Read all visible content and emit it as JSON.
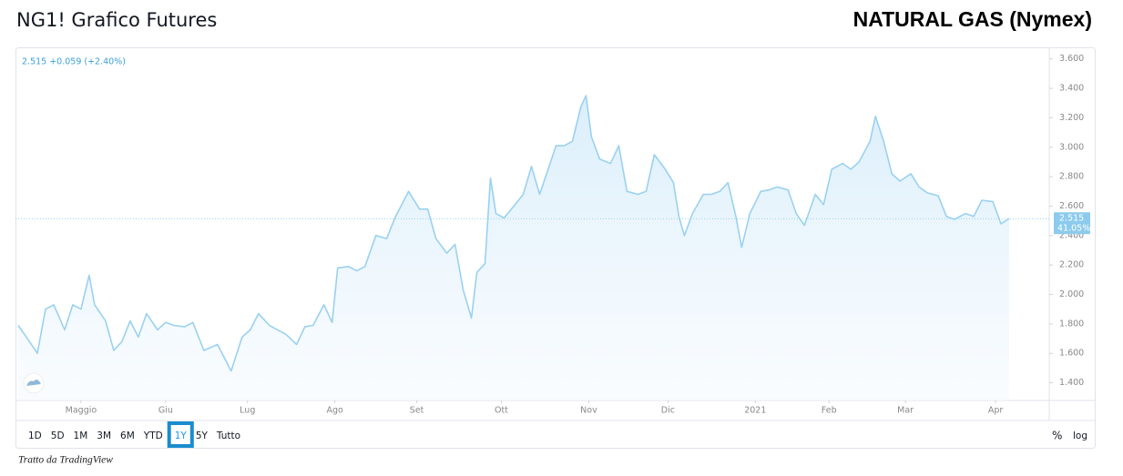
{
  "header": {
    "title": "NG1! Grafico Futures",
    "brand": "NATURAL GAS (Nymex)"
  },
  "chart_data": {
    "type": "area-line",
    "annotation": "2.515 +0.059 (+2.40%)",
    "last_value": 2.515,
    "last_change_label": "41.05%",
    "color": "#9ad1f1",
    "x": [
      1,
      4,
      8,
      11,
      14,
      18,
      21,
      24,
      27,
      29,
      33,
      36,
      39,
      42,
      45,
      48,
      52,
      55,
      58,
      62,
      65,
      69,
      74,
      79,
      83,
      86,
      89,
      93,
      96,
      99,
      103,
      106,
      109,
      113,
      116,
      118,
      122,
      125,
      128,
      132,
      136,
      139,
      144,
      148,
      151,
      154,
      158,
      161,
      164,
      167,
      169,
      172,
      174,
      176,
      179,
      183,
      186,
      189,
      192,
      194,
      198,
      201,
      204,
      207,
      209,
      211,
      214,
      218,
      221,
      224,
      228,
      231,
      234,
      238,
      241,
      243,
      245,
      248,
      252,
      255,
      258,
      261,
      264,
      266,
      269,
      273,
      276,
      279,
      283,
      286,
      289,
      293,
      296,
      299,
      303,
      306,
      309,
      313,
      315,
      318,
      321,
      324,
      328,
      331,
      334,
      338,
      341,
      344,
      348,
      351,
      354,
      358,
      361,
      364
    ],
    "values": [
      1.79,
      1.71,
      1.6,
      1.9,
      1.93,
      1.76,
      1.93,
      1.9,
      2.13,
      1.93,
      1.82,
      1.62,
      1.68,
      1.82,
      1.71,
      1.87,
      1.76,
      1.81,
      1.79,
      1.78,
      1.81,
      1.62,
      1.66,
      1.48,
      1.71,
      1.76,
      1.87,
      1.79,
      1.76,
      1.73,
      1.66,
      1.78,
      1.79,
      1.93,
      1.81,
      2.18,
      2.19,
      2.16,
      2.19,
      2.4,
      2.38,
      2.52,
      2.7,
      2.58,
      2.58,
      2.38,
      2.28,
      2.34,
      2.03,
      1.84,
      2.15,
      2.21,
      2.79,
      2.55,
      2.52,
      2.61,
      2.68,
      2.87,
      2.68,
      2.79,
      3.01,
      3.01,
      3.04,
      3.27,
      3.35,
      3.07,
      2.92,
      2.89,
      3.01,
      2.7,
      2.68,
      2.7,
      2.95,
      2.85,
      2.76,
      2.53,
      2.4,
      2.55,
      2.68,
      2.68,
      2.7,
      2.76,
      2.52,
      2.32,
      2.55,
      2.7,
      2.71,
      2.73,
      2.71,
      2.55,
      2.47,
      2.68,
      2.61,
      2.85,
      2.89,
      2.85,
      2.9,
      3.04,
      3.21,
      3.04,
      2.82,
      2.77,
      2.82,
      2.73,
      2.69,
      2.67,
      2.53,
      2.51,
      2.55,
      2.53,
      2.64,
      2.63,
      2.48,
      2.515
    ],
    "xlim": [
      0,
      378
    ],
    "xticks": [
      {
        "value": 24,
        "label": "Maggio"
      },
      {
        "value": 55,
        "label": "Giu"
      },
      {
        "value": 85,
        "label": "Lug"
      },
      {
        "value": 117,
        "label": "Ago"
      },
      {
        "value": 147,
        "label": "Set"
      },
      {
        "value": 178,
        "label": "Ott"
      },
      {
        "value": 210,
        "label": "Nov"
      },
      {
        "value": 239,
        "label": "Dic"
      },
      {
        "value": 271,
        "label": "2021"
      },
      {
        "value": 298,
        "label": "Feb"
      },
      {
        "value": 326,
        "label": "Mar"
      },
      {
        "value": 359,
        "label": "Apr"
      }
    ],
    "ylim": [
      1.28,
      3.66
    ],
    "yticks": [
      {
        "value": 1.4,
        "label": "1.400"
      },
      {
        "value": 1.6,
        "label": "1.600"
      },
      {
        "value": 1.8,
        "label": "1.800"
      },
      {
        "value": 2.0,
        "label": "2.000"
      },
      {
        "value": 2.2,
        "label": "2.200"
      },
      {
        "value": 2.4,
        "label": "2.400"
      },
      {
        "value": 2.6,
        "label": "2.600"
      },
      {
        "value": 2.8,
        "label": "2.800"
      },
      {
        "value": 3.0,
        "label": "3.000"
      },
      {
        "value": 3.2,
        "label": "3.200"
      },
      {
        "value": 3.4,
        "label": "3.400"
      },
      {
        "value": 3.6,
        "label": "3.600"
      }
    ],
    "ranges": [
      "1D",
      "5D",
      "1M",
      "3M",
      "6M",
      "YTD",
      "1Y",
      "5Y",
      "Tutto"
    ],
    "selected_range_index": 6,
    "scale_options": [
      "%",
      "log"
    ]
  },
  "footer": {
    "source": "Tratto da TradingView"
  }
}
